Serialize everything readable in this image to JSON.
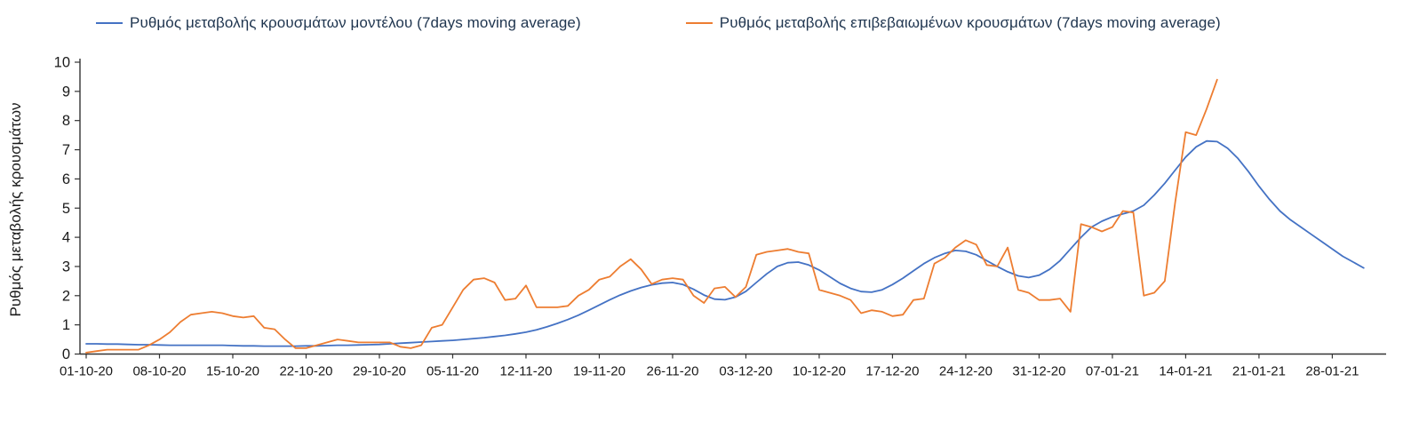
{
  "page": {
    "background": "#ffffff"
  },
  "chart_data": {
    "type": "line",
    "title": "",
    "xlabel": "",
    "ylabel": "Ρυθμός μεταβολής κρουσμάτων",
    "ylim": [
      0,
      10
    ],
    "yticks": [
      0,
      1,
      2,
      3,
      4,
      5,
      6,
      7,
      8,
      9,
      10
    ],
    "grid": false,
    "legend_position": "top",
    "axis_color": "#333333",
    "tick_text_color": "#1a1a1a",
    "legend_text_color": "#203650",
    "x_unit": "days since 01-10-20, weekly tick marks",
    "x_tick_labels": [
      "01-10-20",
      "08-10-20",
      "15-10-20",
      "22-10-20",
      "29-10-20",
      "05-11-20",
      "12-11-20",
      "19-11-20",
      "26-11-20",
      "03-12-20",
      "10-12-20",
      "17-12-20",
      "24-12-20",
      "31-12-20",
      "07-01-21",
      "14-01-21",
      "21-01-21",
      "28-01-21"
    ],
    "x_tick_days": [
      0,
      7,
      14,
      21,
      28,
      35,
      42,
      49,
      56,
      63,
      70,
      77,
      84,
      91,
      98,
      105,
      112,
      119
    ],
    "x_total_days": 123,
    "series": [
      {
        "name": "Ρυθμός μεταβολής κρουσμάτων μοντέλου (7days moving average)",
        "color": "#4472c4",
        "start_day": 0,
        "values": [
          0.35,
          0.35,
          0.34,
          0.34,
          0.33,
          0.32,
          0.32,
          0.31,
          0.3,
          0.3,
          0.3,
          0.3,
          0.3,
          0.3,
          0.29,
          0.28,
          0.28,
          0.27,
          0.27,
          0.27,
          0.27,
          0.28,
          0.28,
          0.29,
          0.3,
          0.3,
          0.31,
          0.32,
          0.33,
          0.35,
          0.37,
          0.39,
          0.41,
          0.43,
          0.45,
          0.47,
          0.5,
          0.53,
          0.56,
          0.6,
          0.64,
          0.69,
          0.75,
          0.83,
          0.93,
          1.05,
          1.18,
          1.33,
          1.5,
          1.68,
          1.86,
          2.02,
          2.16,
          2.28,
          2.37,
          2.43,
          2.45,
          2.38,
          2.22,
          2.02,
          1.88,
          1.86,
          1.95,
          2.15,
          2.45,
          2.75,
          3.0,
          3.13,
          3.15,
          3.05,
          2.88,
          2.65,
          2.42,
          2.25,
          2.14,
          2.12,
          2.2,
          2.38,
          2.6,
          2.85,
          3.1,
          3.3,
          3.45,
          3.55,
          3.52,
          3.4,
          3.2,
          3.0,
          2.82,
          2.68,
          2.62,
          2.7,
          2.9,
          3.2,
          3.6,
          4.0,
          4.35,
          4.55,
          4.7,
          4.8,
          4.9,
          5.1,
          5.45,
          5.85,
          6.3,
          6.75,
          7.1,
          7.3,
          7.28,
          7.05,
          6.7,
          6.25,
          5.75,
          5.3,
          4.9,
          4.6,
          4.35,
          4.1,
          3.85,
          3.6,
          3.35,
          3.15,
          2.95
        ]
      },
      {
        "name": "Ρυθμός μεταβολής επιβεβαιωμένων κρουσμάτων (7days moving average)",
        "color": "#ed7d31",
        "start_day": 0,
        "values": [
          0.05,
          0.1,
          0.15,
          0.15,
          0.15,
          0.15,
          0.3,
          0.5,
          0.75,
          1.1,
          1.35,
          1.4,
          1.45,
          1.4,
          1.3,
          1.25,
          1.3,
          0.9,
          0.85,
          0.5,
          0.2,
          0.2,
          0.3,
          0.4,
          0.5,
          0.45,
          0.4,
          0.4,
          0.4,
          0.4,
          0.25,
          0.2,
          0.3,
          0.9,
          1.0,
          1.6,
          2.2,
          2.55,
          2.6,
          2.45,
          1.85,
          1.9,
          2.35,
          1.6,
          1.6,
          1.6,
          1.65,
          2.0,
          2.2,
          2.55,
          2.65,
          3.0,
          3.25,
          2.9,
          2.4,
          2.55,
          2.6,
          2.55,
          2.0,
          1.75,
          2.25,
          2.3,
          1.95,
          2.3,
          3.4,
          3.5,
          3.55,
          3.6,
          3.5,
          3.45,
          2.2,
          2.1,
          2.0,
          1.85,
          1.4,
          1.5,
          1.45,
          1.3,
          1.35,
          1.85,
          1.9,
          3.1,
          3.3,
          3.65,
          3.9,
          3.75,
          3.05,
          3.0,
          3.65,
          2.2,
          2.1,
          1.85,
          1.85,
          1.9,
          1.45,
          4.45,
          4.35,
          4.2,
          4.35,
          4.9,
          4.85,
          2.0,
          2.1,
          2.5,
          5.2,
          7.6,
          7.5,
          8.4,
          9.4
        ]
      }
    ]
  }
}
